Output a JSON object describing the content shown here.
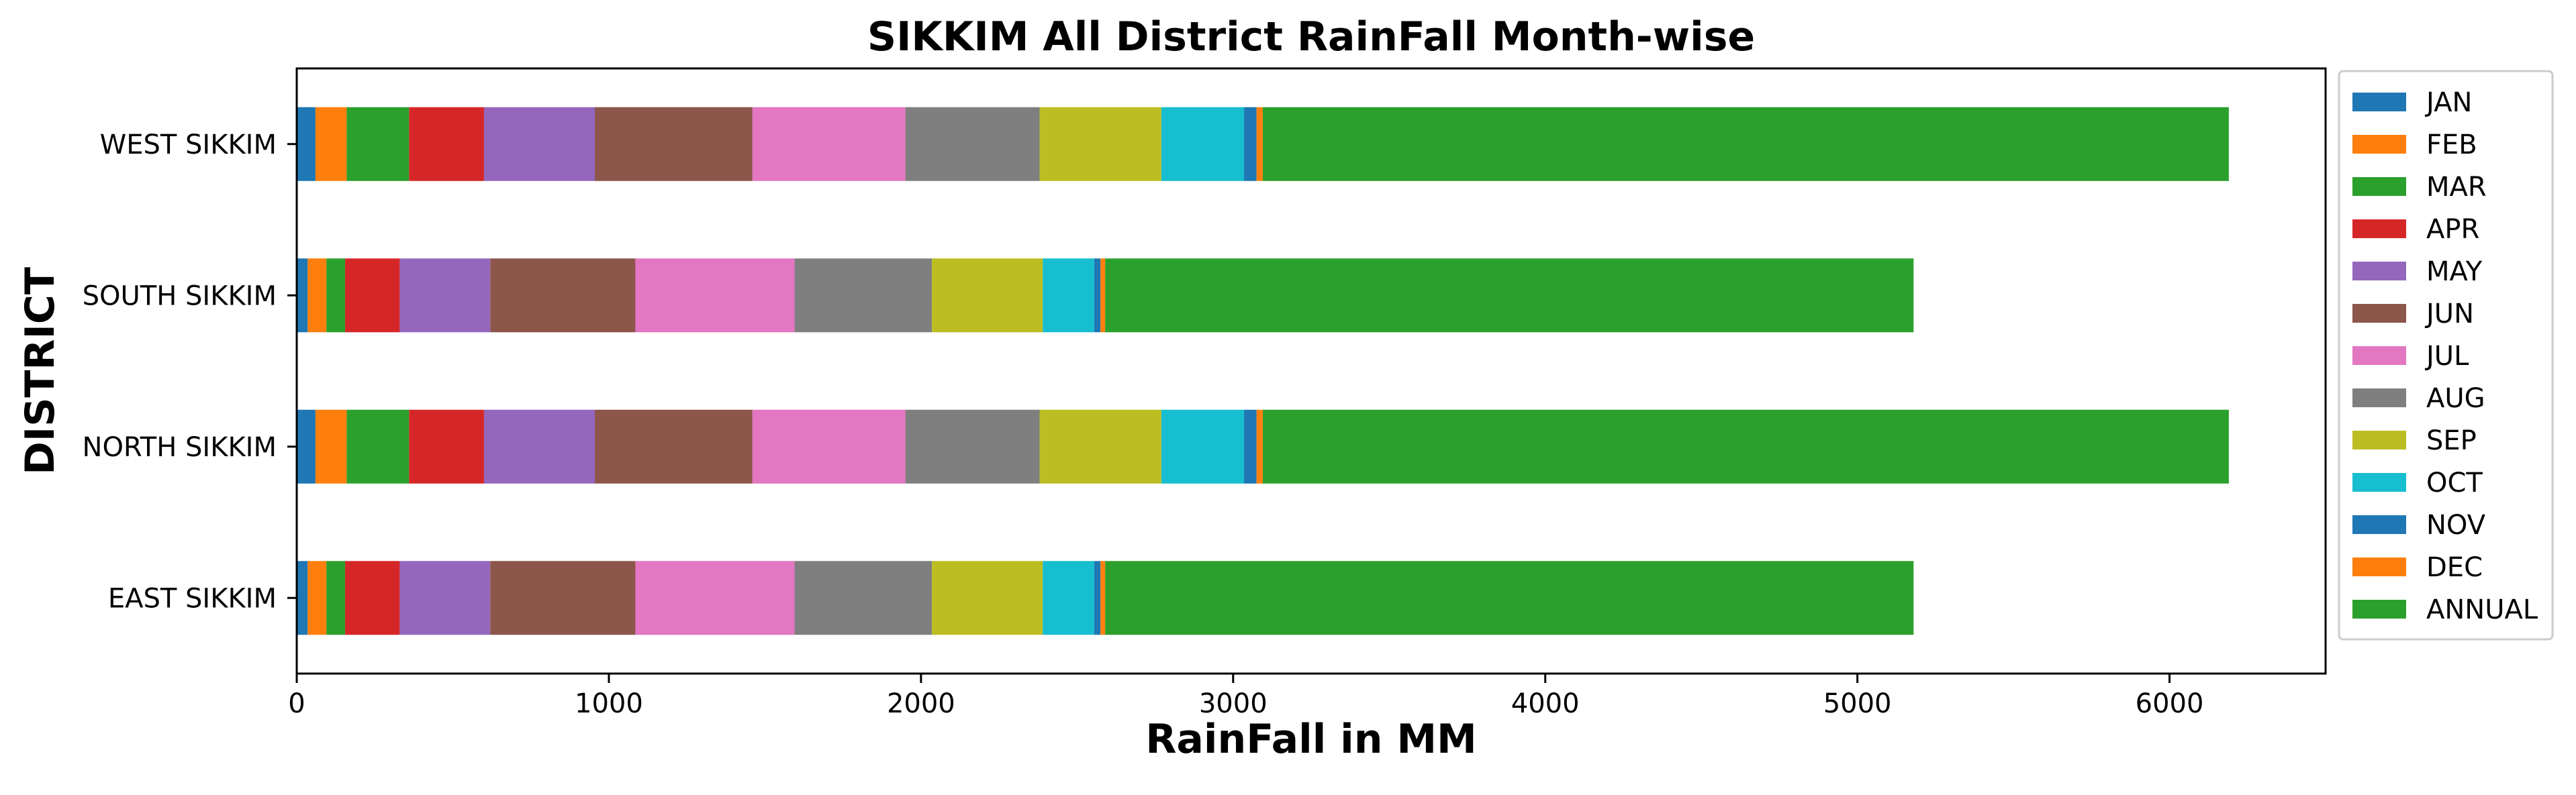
{
  "chart_data": {
    "type": "bar",
    "orientation": "horizontal",
    "stacked": true,
    "title": "SIKKIM All District RainFall Month-wise",
    "xlabel": "RainFall in MM",
    "ylabel": "DISTRICT",
    "xlim": [
      0,
      6500
    ],
    "xticks": [
      0,
      1000,
      2000,
      3000,
      4000,
      5000,
      6000
    ],
    "categories": [
      "EAST SIKKIM",
      "NORTH SIKKIM",
      "SOUTH SIKKIM",
      "WEST SIKKIM"
    ],
    "grid": false,
    "legend_position": "outside-right",
    "series": [
      {
        "name": "JAN",
        "color": "#1f77b4",
        "values": [
          35,
          60,
          35,
          60
        ]
      },
      {
        "name": "FEB",
        "color": "#ff7f0e",
        "values": [
          60,
          100,
          60,
          100
        ]
      },
      {
        "name": "MAR",
        "color": "#2ca02c",
        "values": [
          60,
          200,
          60,
          200
        ]
      },
      {
        "name": "APR",
        "color": "#d62728",
        "values": [
          175,
          240,
          175,
          240
        ]
      },
      {
        "name": "MAY",
        "color": "#9467bd",
        "values": [
          290,
          355,
          290,
          355
        ]
      },
      {
        "name": "JUN",
        "color": "#8c564b",
        "values": [
          465,
          505,
          465,
          505
        ]
      },
      {
        "name": "JUL",
        "color": "#e377c2",
        "values": [
          510,
          490,
          510,
          490
        ]
      },
      {
        "name": "AUG",
        "color": "#7f7f7f",
        "values": [
          440,
          430,
          440,
          430
        ]
      },
      {
        "name": "SEP",
        "color": "#bcbd22",
        "values": [
          355,
          390,
          355,
          390
        ]
      },
      {
        "name": "OCT",
        "color": "#17becf",
        "values": [
          165,
          265,
          165,
          265
        ]
      },
      {
        "name": "NOV",
        "color": "#1f77b4",
        "values": [
          20,
          40,
          20,
          40
        ]
      },
      {
        "name": "DEC",
        "color": "#ff7f0e",
        "values": [
          15,
          20,
          15,
          20
        ]
      },
      {
        "name": "ANNUAL",
        "color": "#2ca02c",
        "values": [
          2590,
          3095,
          2590,
          3095
        ]
      }
    ]
  }
}
